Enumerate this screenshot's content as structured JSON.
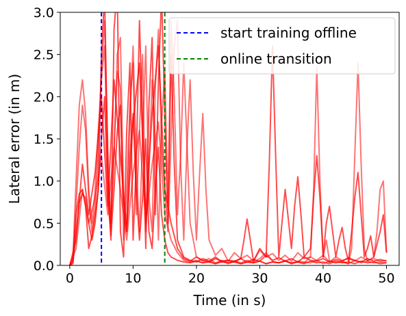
{
  "chart_data": {
    "type": "line",
    "title": "",
    "xlabel": "Time (in s)",
    "ylabel": "Lateral error (in m)",
    "xlim": [
      -1.5,
      52
    ],
    "ylim": [
      0,
      3
    ],
    "xticks": [
      0,
      10,
      20,
      30,
      40,
      50
    ],
    "xtick_labels": [
      "0",
      "10",
      "20",
      "30",
      "40",
      "50"
    ],
    "yticks": [
      0,
      0.5,
      1,
      1.5,
      2,
      2.5,
      3
    ],
    "ytick_labels": [
      "0.0",
      "0.5",
      "1.0",
      "1.5",
      "2.0",
      "2.5",
      "3.0"
    ],
    "grid": false,
    "legend_position": "top-right",
    "colors": {
      "runs": "#ff0000",
      "offline_marker": "#0000ff",
      "online_marker": "#008000"
    },
    "vertical_markers": [
      {
        "name": "start training offline",
        "x": 5,
        "color": "#0000ff",
        "style": "dashed"
      },
      {
        "name": "online transition",
        "x": 15,
        "color": "#008000",
        "style": "dashed"
      }
    ],
    "series": [
      {
        "x": [
          0,
          0.5,
          1,
          1.5,
          2,
          2.5,
          3,
          3.5,
          4,
          4.5,
          5,
          5.5,
          6,
          6.5,
          7,
          7.5,
          8,
          8.5,
          9,
          9.5,
          10,
          10.5,
          11,
          11.5,
          12,
          12.5,
          13,
          13.5,
          14,
          14.5,
          15,
          15.5,
          16,
          16.5,
          17,
          18,
          19,
          20,
          21,
          22,
          23,
          24,
          25,
          26,
          27,
          28,
          29,
          30,
          31,
          32,
          33,
          34,
          35,
          36,
          37,
          38,
          39,
          40,
          41,
          42,
          43,
          44,
          45,
          46,
          47,
          48,
          49,
          50
        ],
        "y": [
          0,
          0.05,
          0.6,
          0.85,
          0.9,
          0.7,
          0.2,
          0.35,
          0.6,
          0.9,
          2.5,
          3.2,
          1.2,
          0.3,
          2.8,
          3.3,
          0.4,
          0.1,
          1.6,
          2.4,
          0.3,
          1.2,
          2.9,
          1.7,
          0.2,
          1.9,
          2.7,
          0.6,
          2.2,
          3.2,
          1.8,
          0.5,
          2.5,
          1.2,
          0.3,
          0.1,
          0.06,
          0.04,
          0.08,
          0.05,
          0.1,
          0.04,
          0.06,
          0.05,
          0.08,
          0.04,
          0.07,
          0.05,
          0.12,
          0.06,
          0.09,
          0.05,
          0.08,
          0.04,
          0.1,
          0.06,
          0.05,
          0.08,
          0.04,
          0.07,
          0.05,
          0.09,
          0.06,
          0.04,
          0.08,
          0.05,
          0.07,
          0.05
        ]
      },
      {
        "x": [
          0,
          0.5,
          1,
          1.5,
          2,
          2.5,
          3,
          3.5,
          4,
          4.5,
          5,
          5.5,
          6,
          6.5,
          7,
          7.5,
          8,
          8.5,
          9,
          9.5,
          10,
          10.5,
          11,
          11.5,
          12,
          12.5,
          13,
          13.5,
          14,
          14.5,
          15,
          15.5,
          16,
          16.5,
          17,
          17.5,
          18,
          19,
          20,
          21,
          22,
          23,
          24,
          25,
          26,
          27,
          28,
          29,
          30,
          31,
          32,
          33,
          34,
          35,
          36,
          37,
          38,
          39,
          40,
          41,
          42,
          43,
          44,
          45,
          46,
          47,
          48,
          49,
          50
        ],
        "y": [
          0,
          0.1,
          1.0,
          1.9,
          2.2,
          1.8,
          0.9,
          0.5,
          0.9,
          1.6,
          2.2,
          2.6,
          1.0,
          0.5,
          1.4,
          2.3,
          2.1,
          0.3,
          0.9,
          1.9,
          2.4,
          0.6,
          1.6,
          2.5,
          0.4,
          1.1,
          2.2,
          1.5,
          0.3,
          1.7,
          2.3,
          0.7,
          2.9,
          2.0,
          0.6,
          1.3,
          2.4,
          0.5,
          0.1,
          0.05,
          0.08,
          0.03,
          0.06,
          0.02,
          0.05,
          0.03,
          0.06,
          0.04,
          0.08,
          0.15,
          0.05,
          0.03,
          0.06,
          0.02,
          0.05,
          0.04,
          0.03,
          0.06,
          0.02,
          0.05,
          0.03,
          0.04,
          0.02,
          0.06,
          0.03,
          0.05,
          0.03,
          0.04,
          0.03
        ]
      },
      {
        "x": [
          0,
          0.5,
          1,
          1.5,
          2,
          2.5,
          3,
          3.5,
          4,
          4.5,
          5,
          5.5,
          6,
          6.5,
          7,
          7.5,
          8,
          8.5,
          9,
          9.5,
          10,
          10.5,
          11,
          11.5,
          12,
          12.5,
          13,
          13.5,
          14,
          14.5,
          15,
          15.5,
          16,
          17,
          18,
          19,
          20,
          21,
          22,
          23,
          24,
          25,
          26,
          27,
          28,
          29,
          30,
          31,
          32,
          33,
          34,
          35,
          36,
          37,
          38,
          39,
          40,
          41,
          42,
          43,
          44,
          45,
          46,
          47,
          48,
          49,
          50
        ],
        "y": [
          0,
          0.02,
          0.4,
          0.75,
          0.85,
          0.8,
          0.5,
          0.3,
          0.5,
          0.9,
          1.5,
          2.0,
          0.8,
          0.35,
          0.9,
          1.6,
          1.9,
          0.7,
          0.4,
          1.3,
          1.8,
          0.9,
          0.3,
          0.8,
          1.5,
          0.4,
          0.2,
          0.9,
          1.4,
          0.6,
          0.3,
          0.15,
          0.1,
          0.06,
          0.04,
          0.03,
          0.05,
          0.03,
          0.04,
          0.02,
          0.05,
          0.03,
          0.04,
          0.02,
          0.04,
          0.03,
          0.05,
          0.02,
          0.04,
          0.03,
          0.05,
          0.03,
          0.04,
          0.02,
          0.05,
          0.03,
          0.04,
          0.02,
          0.05,
          0.03,
          0.04,
          0.02,
          0.05,
          0.03,
          0.04,
          0.02,
          0.03
        ]
      },
      {
        "x": [
          0,
          0.5,
          1,
          1.5,
          2,
          2.5,
          3,
          3.5,
          4,
          4.5,
          5,
          5.5,
          6,
          6.5,
          7,
          7.5,
          8,
          8.5,
          9,
          9.5,
          10,
          10.5,
          11,
          11.5,
          12,
          12.5,
          13,
          13.5,
          14,
          14.5,
          15,
          15.5,
          16,
          16.5,
          17,
          17.5,
          18,
          18.5,
          19,
          19.5,
          20,
          20.5,
          21,
          21.5,
          22,
          23,
          24,
          25,
          26,
          27,
          28,
          29,
          30,
          31,
          32,
          33,
          34,
          35,
          36,
          37,
          38,
          39,
          40,
          41,
          42,
          43,
          44,
          45,
          46,
          47,
          48,
          49,
          50
        ],
        "y": [
          0,
          0.05,
          0.7,
          1.4,
          1.9,
          1.6,
          0.8,
          0.4,
          0.7,
          1.3,
          2.3,
          2.9,
          1.4,
          0.5,
          1.3,
          2.5,
          2.7,
          0.8,
          0.5,
          1.8,
          2.6,
          1.2,
          0.4,
          1.5,
          2.6,
          0.8,
          0.4,
          2.1,
          2.8,
          1.4,
          0.9,
          0.4,
          1.5,
          2.6,
          2.9,
          1.2,
          0.3,
          1.4,
          2.2,
          1.1,
          0.3,
          1.1,
          1.8,
          0.9,
          0.3,
          0.12,
          0.2,
          0.05,
          0.15,
          0.08,
          0.12,
          0.05,
          0.18,
          0.1,
          0.14,
          0.06,
          0.12,
          0.05,
          0.15,
          0.08,
          0.1,
          0.06,
          0.12,
          0.04,
          0.1,
          0.06,
          0.08,
          0.05,
          0.1,
          0.06,
          0.08,
          0.05,
          0.06
        ]
      },
      {
        "x": [
          0,
          1,
          2,
          3,
          4,
          5,
          6,
          7,
          8,
          9,
          10,
          11,
          12,
          13,
          14,
          15,
          16,
          17,
          18,
          19,
          20,
          21,
          22,
          23,
          24,
          25,
          26,
          27,
          27.5,
          28,
          28.5,
          29,
          30,
          31,
          31.5,
          32,
          32.5,
          33,
          33.5,
          34,
          35,
          35.5,
          36,
          36.5,
          37,
          38,
          38.5,
          39,
          39.5,
          40,
          40.5,
          41,
          42,
          42.5,
          43,
          43.5,
          44,
          44.5,
          45,
          45.5,
          46,
          46.5,
          47,
          47.5,
          48,
          49,
          49.5,
          50
        ],
        "y": [
          0,
          0.3,
          1.2,
          0.6,
          1.1,
          2.0,
          0.7,
          2.2,
          1.3,
          0.4,
          1.7,
          2.4,
          0.6,
          1.8,
          2.6,
          0.9,
          0.5,
          0.2,
          0.08,
          0.05,
          0.1,
          0.06,
          0.04,
          0.08,
          0.05,
          0.06,
          0.04,
          0.08,
          0.3,
          0.55,
          0.3,
          0.05,
          0.2,
          0.1,
          1.2,
          2.6,
          1.3,
          0.1,
          0.5,
          0.9,
          0.2,
          0.7,
          1.05,
          0.6,
          0.1,
          0.2,
          0.8,
          1.3,
          0.8,
          0.1,
          0.5,
          0.7,
          0.1,
          0.3,
          0.45,
          0.2,
          0.05,
          0.4,
          0.8,
          1.1,
          0.6,
          0.1,
          0.2,
          0.35,
          0.1,
          0.4,
          0.6,
          0.15
        ]
      },
      {
        "x": [
          0,
          1,
          2,
          3,
          4,
          5,
          6,
          7,
          8,
          9,
          10,
          11,
          12,
          13,
          14,
          15,
          16,
          17,
          18,
          19,
          20,
          21,
          22,
          23,
          24,
          25,
          26,
          27,
          28,
          29,
          30,
          31,
          32,
          33,
          34,
          35,
          36,
          37,
          38,
          38.5,
          39,
          39.5,
          40,
          40.5,
          41,
          42,
          43,
          44,
          44.5,
          45,
          45.5,
          46,
          46.5,
          47,
          48,
          48.5,
          49,
          49.5,
          50
        ],
        "y": [
          0,
          0.2,
          0.9,
          0.5,
          0.8,
          1.3,
          0.6,
          1.4,
          0.9,
          0.3,
          1.1,
          1.6,
          0.5,
          1.2,
          1.7,
          0.6,
          0.3,
          0.15,
          0.06,
          0.04,
          0.06,
          0.03,
          0.05,
          0.02,
          0.04,
          0.03,
          0.05,
          0.02,
          0.04,
          0.03,
          0.05,
          0.02,
          0.04,
          0.03,
          0.05,
          0.02,
          0.04,
          0.03,
          0.1,
          0.9,
          2.35,
          1.0,
          0.1,
          0.3,
          0.05,
          0.03,
          0.05,
          0.02,
          0.2,
          1.3,
          2.4,
          1.2,
          0.2,
          0.05,
          0.1,
          0.4,
          0.9,
          1.0,
          0.15
        ]
      }
    ]
  }
}
